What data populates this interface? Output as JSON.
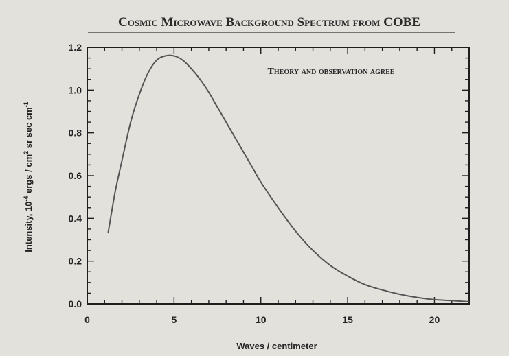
{
  "chart_data": {
    "type": "line",
    "title": "Cosmic Microwave Background Spectrum from COBE",
    "annotation": "Theory and observation agree",
    "xlabel": "Waves / centimeter",
    "ylabel": "Intensity, 10",
    "ylabel_sup1": "-4",
    "ylabel_mid": " ergs / cm",
    "ylabel_sup2": "2",
    "ylabel_end": " sr sec cm",
    "ylabel_sup3": "-1",
    "xlim": [
      0,
      22
    ],
    "ylim": [
      0,
      1.2
    ],
    "x_ticks": [
      0,
      5,
      10,
      15,
      20
    ],
    "x_tick_labels": [
      "0",
      "5",
      "10",
      "15",
      "20"
    ],
    "y_ticks": [
      0,
      0.2,
      0.4,
      0.6,
      0.8,
      1.0,
      1.2
    ],
    "y_tick_labels": [
      "0.0",
      "0.2",
      "0.4",
      "0.6",
      "0.8",
      "1.0",
      "1.2"
    ],
    "grid": false,
    "series": [
      {
        "color": "#555555",
        "x": [
          1.2,
          1.6,
          2,
          2.5,
          3,
          3.5,
          4,
          4.5,
          5,
          5.5,
          6,
          6.5,
          7,
          7.5,
          8,
          8.5,
          9,
          9.5,
          10,
          11,
          12,
          13,
          14,
          15,
          16,
          17,
          18,
          19,
          20,
          21,
          22
        ],
        "y": [
          0.33,
          0.52,
          0.67,
          0.85,
          0.98,
          1.08,
          1.14,
          1.16,
          1.16,
          1.14,
          1.1,
          1.05,
          0.99,
          0.92,
          0.85,
          0.78,
          0.71,
          0.64,
          0.57,
          0.45,
          0.34,
          0.25,
          0.18,
          0.13,
          0.09,
          0.065,
          0.045,
          0.03,
          0.02,
          0.015,
          0.01
        ]
      }
    ]
  }
}
